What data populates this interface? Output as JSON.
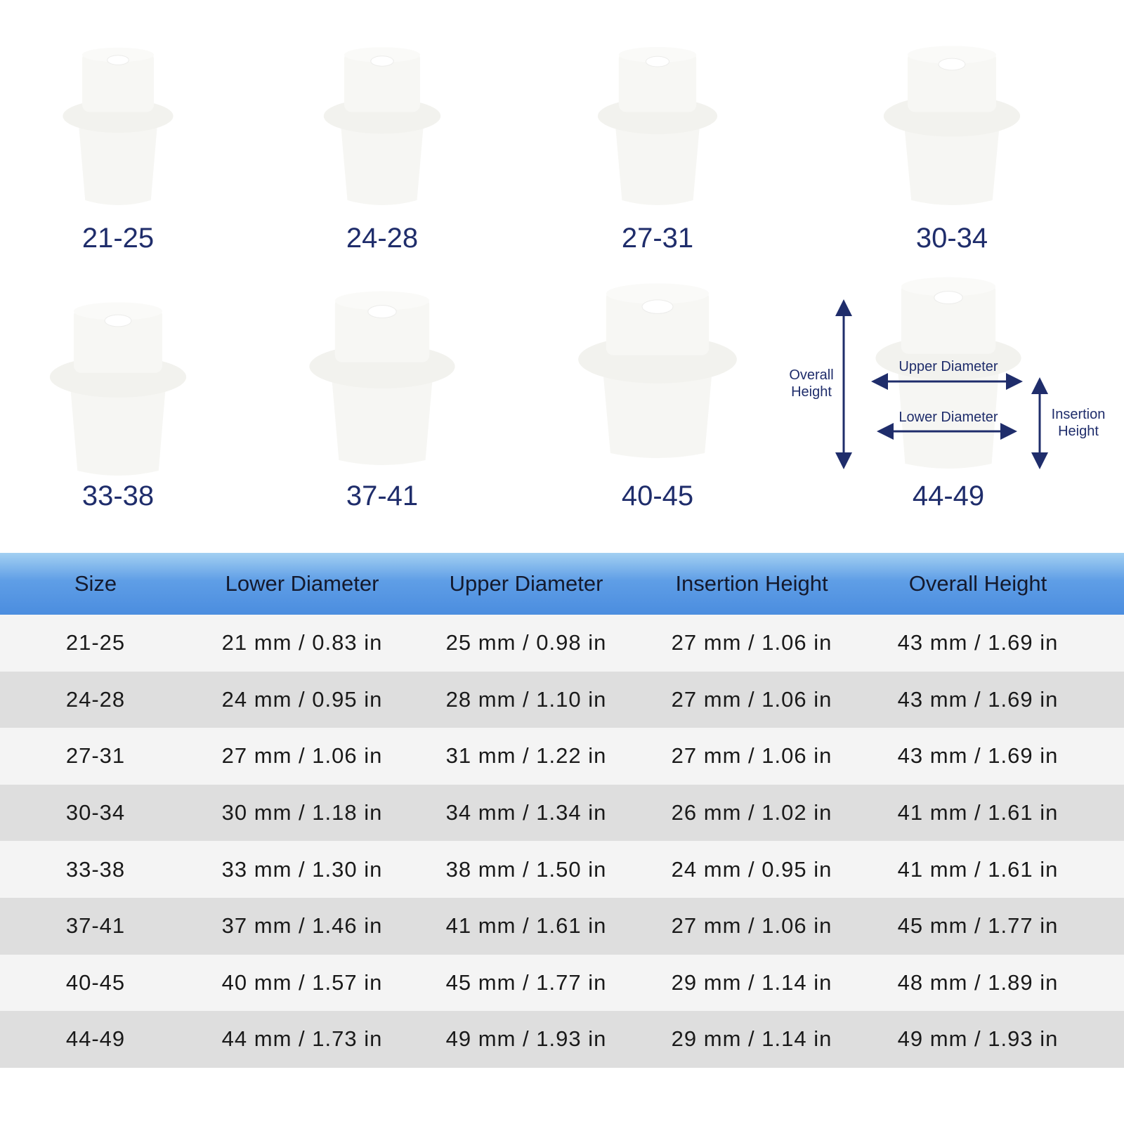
{
  "colors": {
    "label": "#1f2d6b",
    "header_top": "#a3d0f2",
    "header_bottom": "#4b8ddf",
    "row_light": "#f4f4f4",
    "row_dark": "#dedede"
  },
  "products": [
    {
      "label": "21-25"
    },
    {
      "label": "24-28"
    },
    {
      "label": "27-31"
    },
    {
      "label": "30-34"
    },
    {
      "label": "33-38"
    },
    {
      "label": "37-41"
    },
    {
      "label": "40-45"
    },
    {
      "label": "44-49"
    }
  ],
  "diagram": {
    "overall_height": "Overall Height",
    "upper_diameter": "Upper Diameter",
    "lower_diameter": "Lower Diameter",
    "insertion_height": "Insertion Height"
  },
  "table": {
    "headers": [
      "Size",
      "Lower Diameter",
      "Upper Diameter",
      "Insertion Height",
      "Overall Height"
    ],
    "rows": [
      [
        "21-25",
        "21 mm / 0.83 in",
        "25 mm / 0.98 in",
        "27 mm / 1.06 in",
        "43 mm / 1.69 in"
      ],
      [
        "24-28",
        "24 mm / 0.95 in",
        "28 mm / 1.10 in",
        "27 mm / 1.06 in",
        "43 mm / 1.69 in"
      ],
      [
        "27-31",
        "27 mm / 1.06 in",
        "31 mm / 1.22 in",
        "27 mm / 1.06 in",
        "43 mm / 1.69 in"
      ],
      [
        "30-34",
        "30 mm / 1.18 in",
        "34 mm / 1.34 in",
        "26 mm / 1.02 in",
        "41 mm / 1.61 in"
      ],
      [
        "33-38",
        "33 mm / 1.30 in",
        "38 mm / 1.50 in",
        "24 mm / 0.95 in",
        "41 mm / 1.61 in"
      ],
      [
        "37-41",
        "37 mm / 1.46 in",
        "41 mm / 1.61 in",
        "27 mm / 1.06 in",
        "45 mm / 1.77 in"
      ],
      [
        "40-45",
        "40 mm / 1.57 in",
        "45 mm / 1.77 in",
        "29 mm / 1.14 in",
        "48 mm / 1.89 in"
      ],
      [
        "44-49",
        "44 mm / 1.73 in",
        "49 mm / 1.93 in",
        "29 mm / 1.14 in",
        "49 mm / 1.93 in"
      ]
    ]
  }
}
